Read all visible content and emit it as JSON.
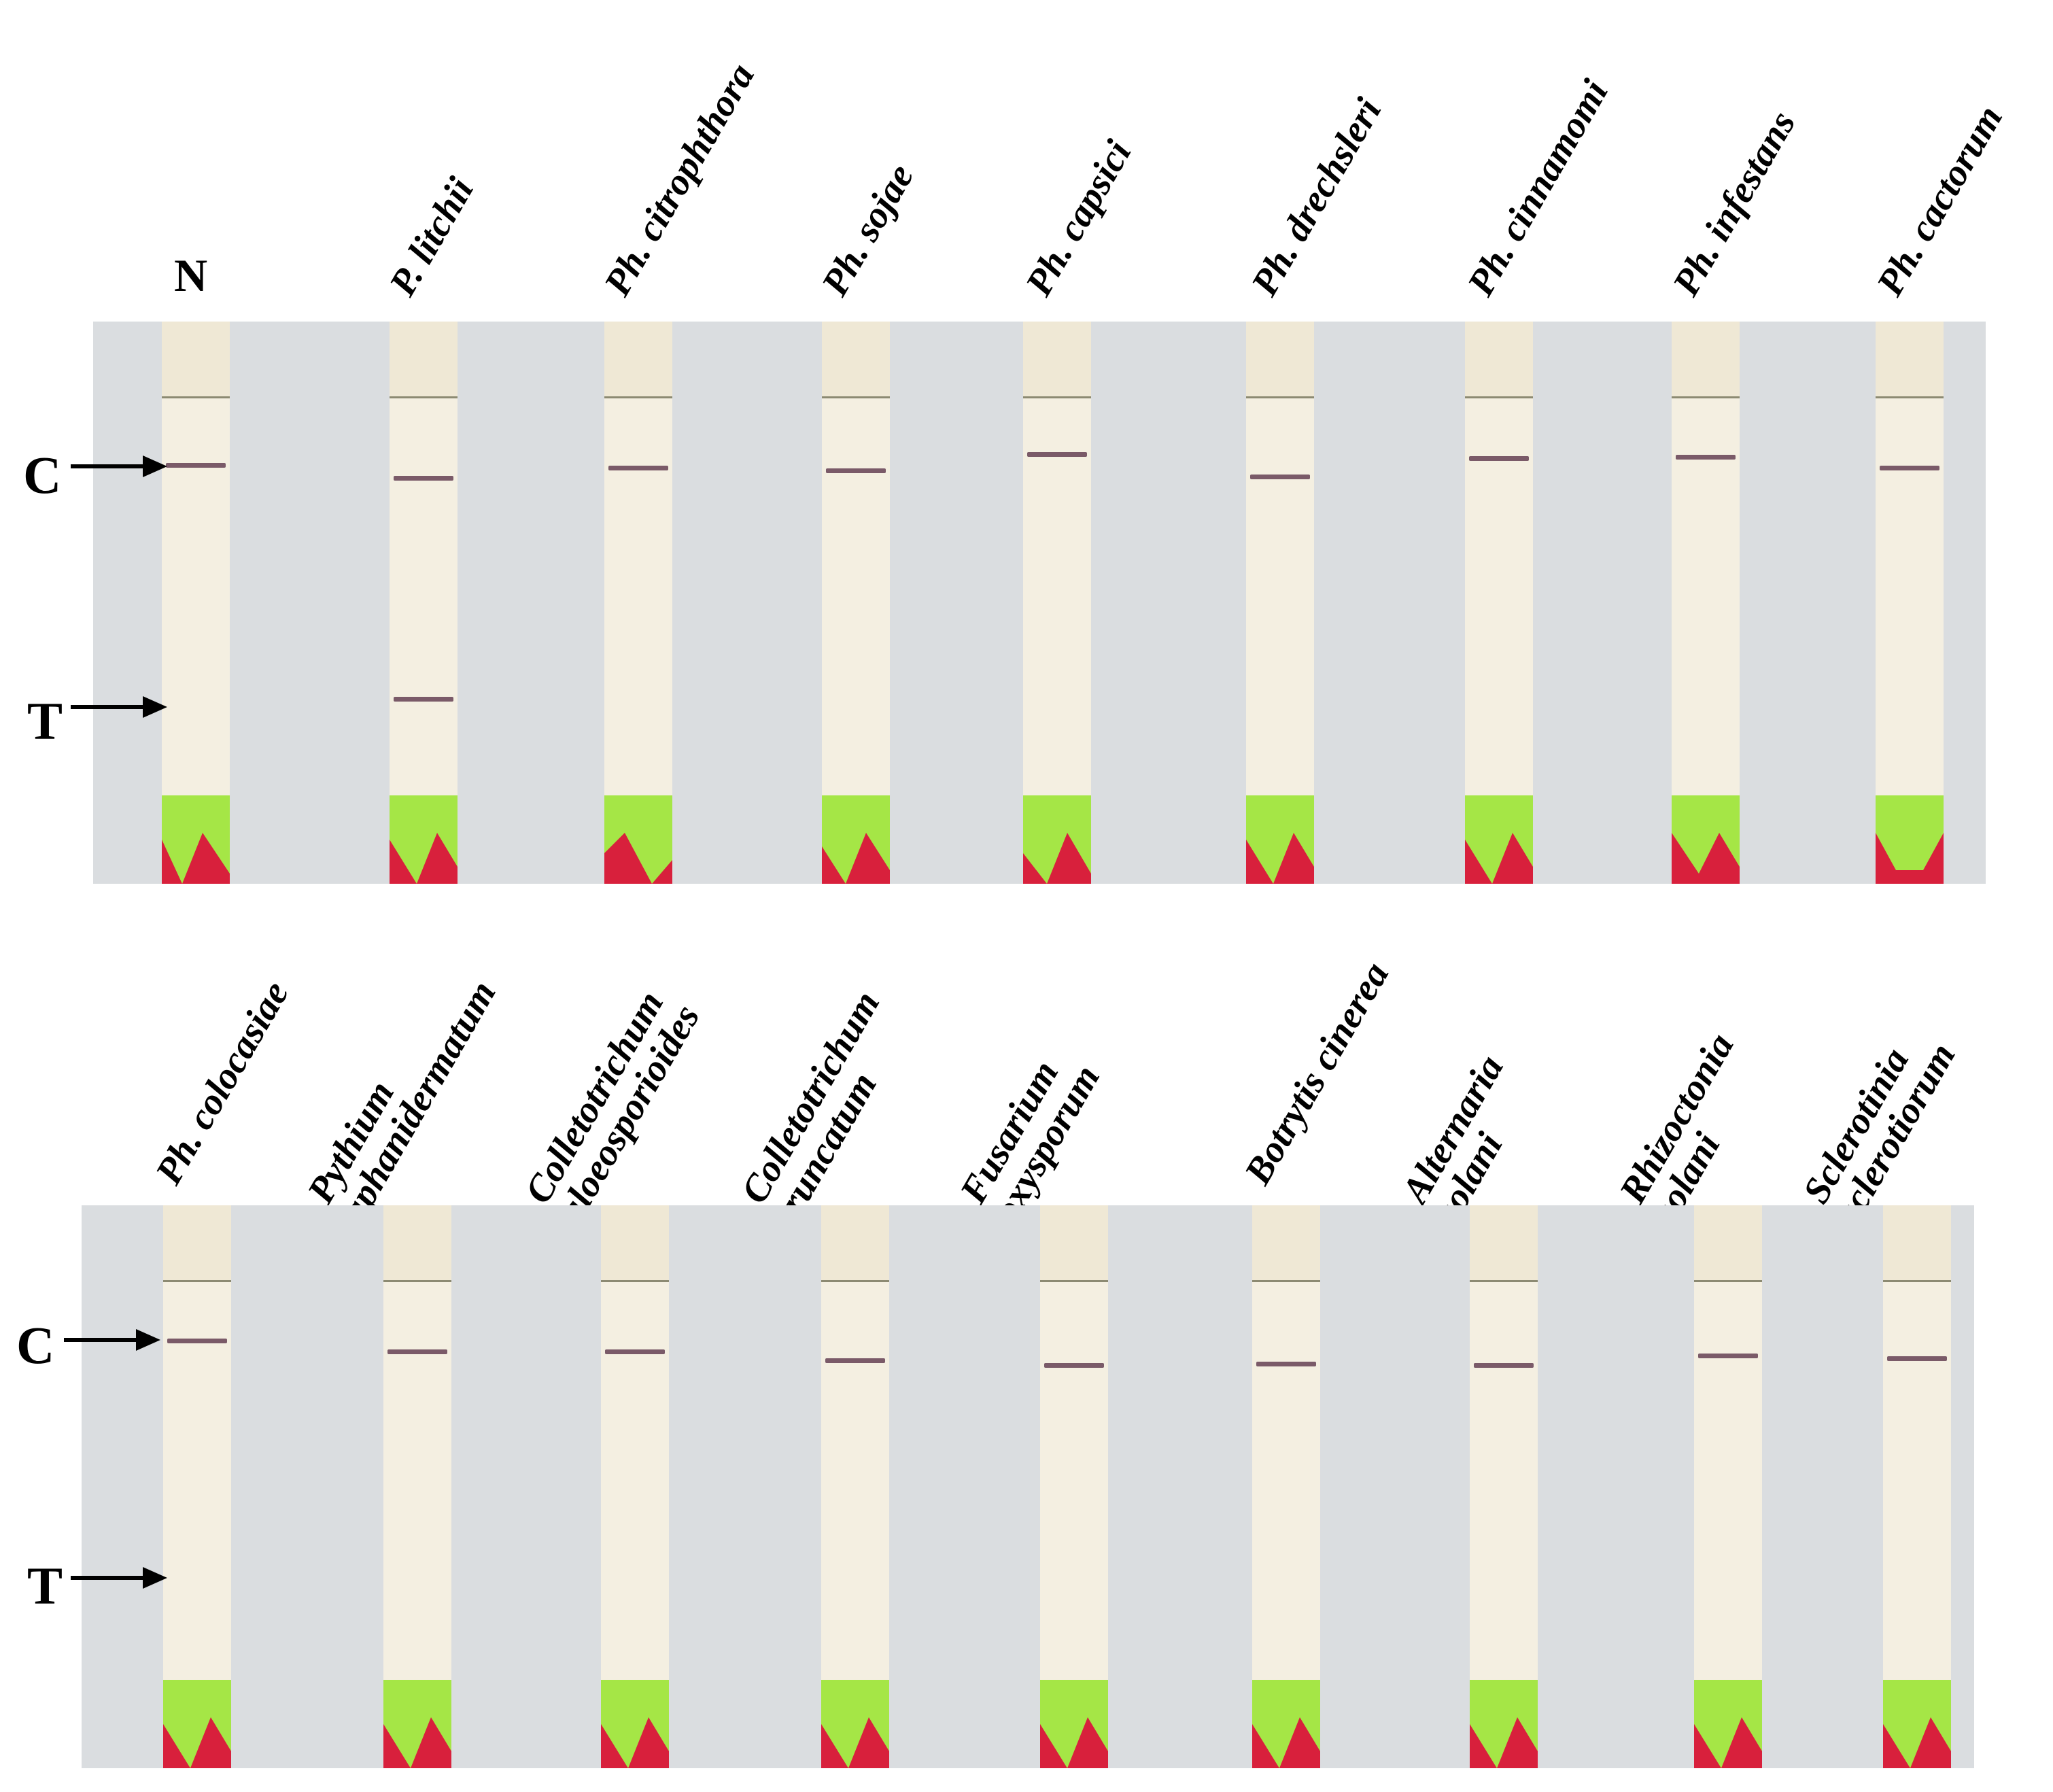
{
  "top_row": {
    "labels": [
      "N",
      "P. litchii",
      "Ph. citrophthora",
      "Ph. sojae",
      "Ph. capsici",
      "Ph. drechsleri",
      "Ph. cinnamomi",
      "Ph. infestans",
      "Ph. cactorum"
    ]
  },
  "bottom_row": {
    "labels": [
      "Ph. colocasiae",
      "Pythium aphanidermatum",
      "Colletotrichum gloeosporioides",
      "Colletotrichum truncatum",
      "Fusarium oxysporum",
      "Botrytis cinerea",
      "Alternaria solani",
      "Rhizoctonia solani",
      "Sclerotinia sclerotiorum"
    ]
  },
  "markers": {
    "control": "C",
    "test": "T"
  },
  "colors": {
    "background": "#dadde0",
    "strip": "#f4efe1",
    "line": "#7a5a68",
    "pad_green": "#a5e646",
    "pad_red": "#d8203c"
  }
}
